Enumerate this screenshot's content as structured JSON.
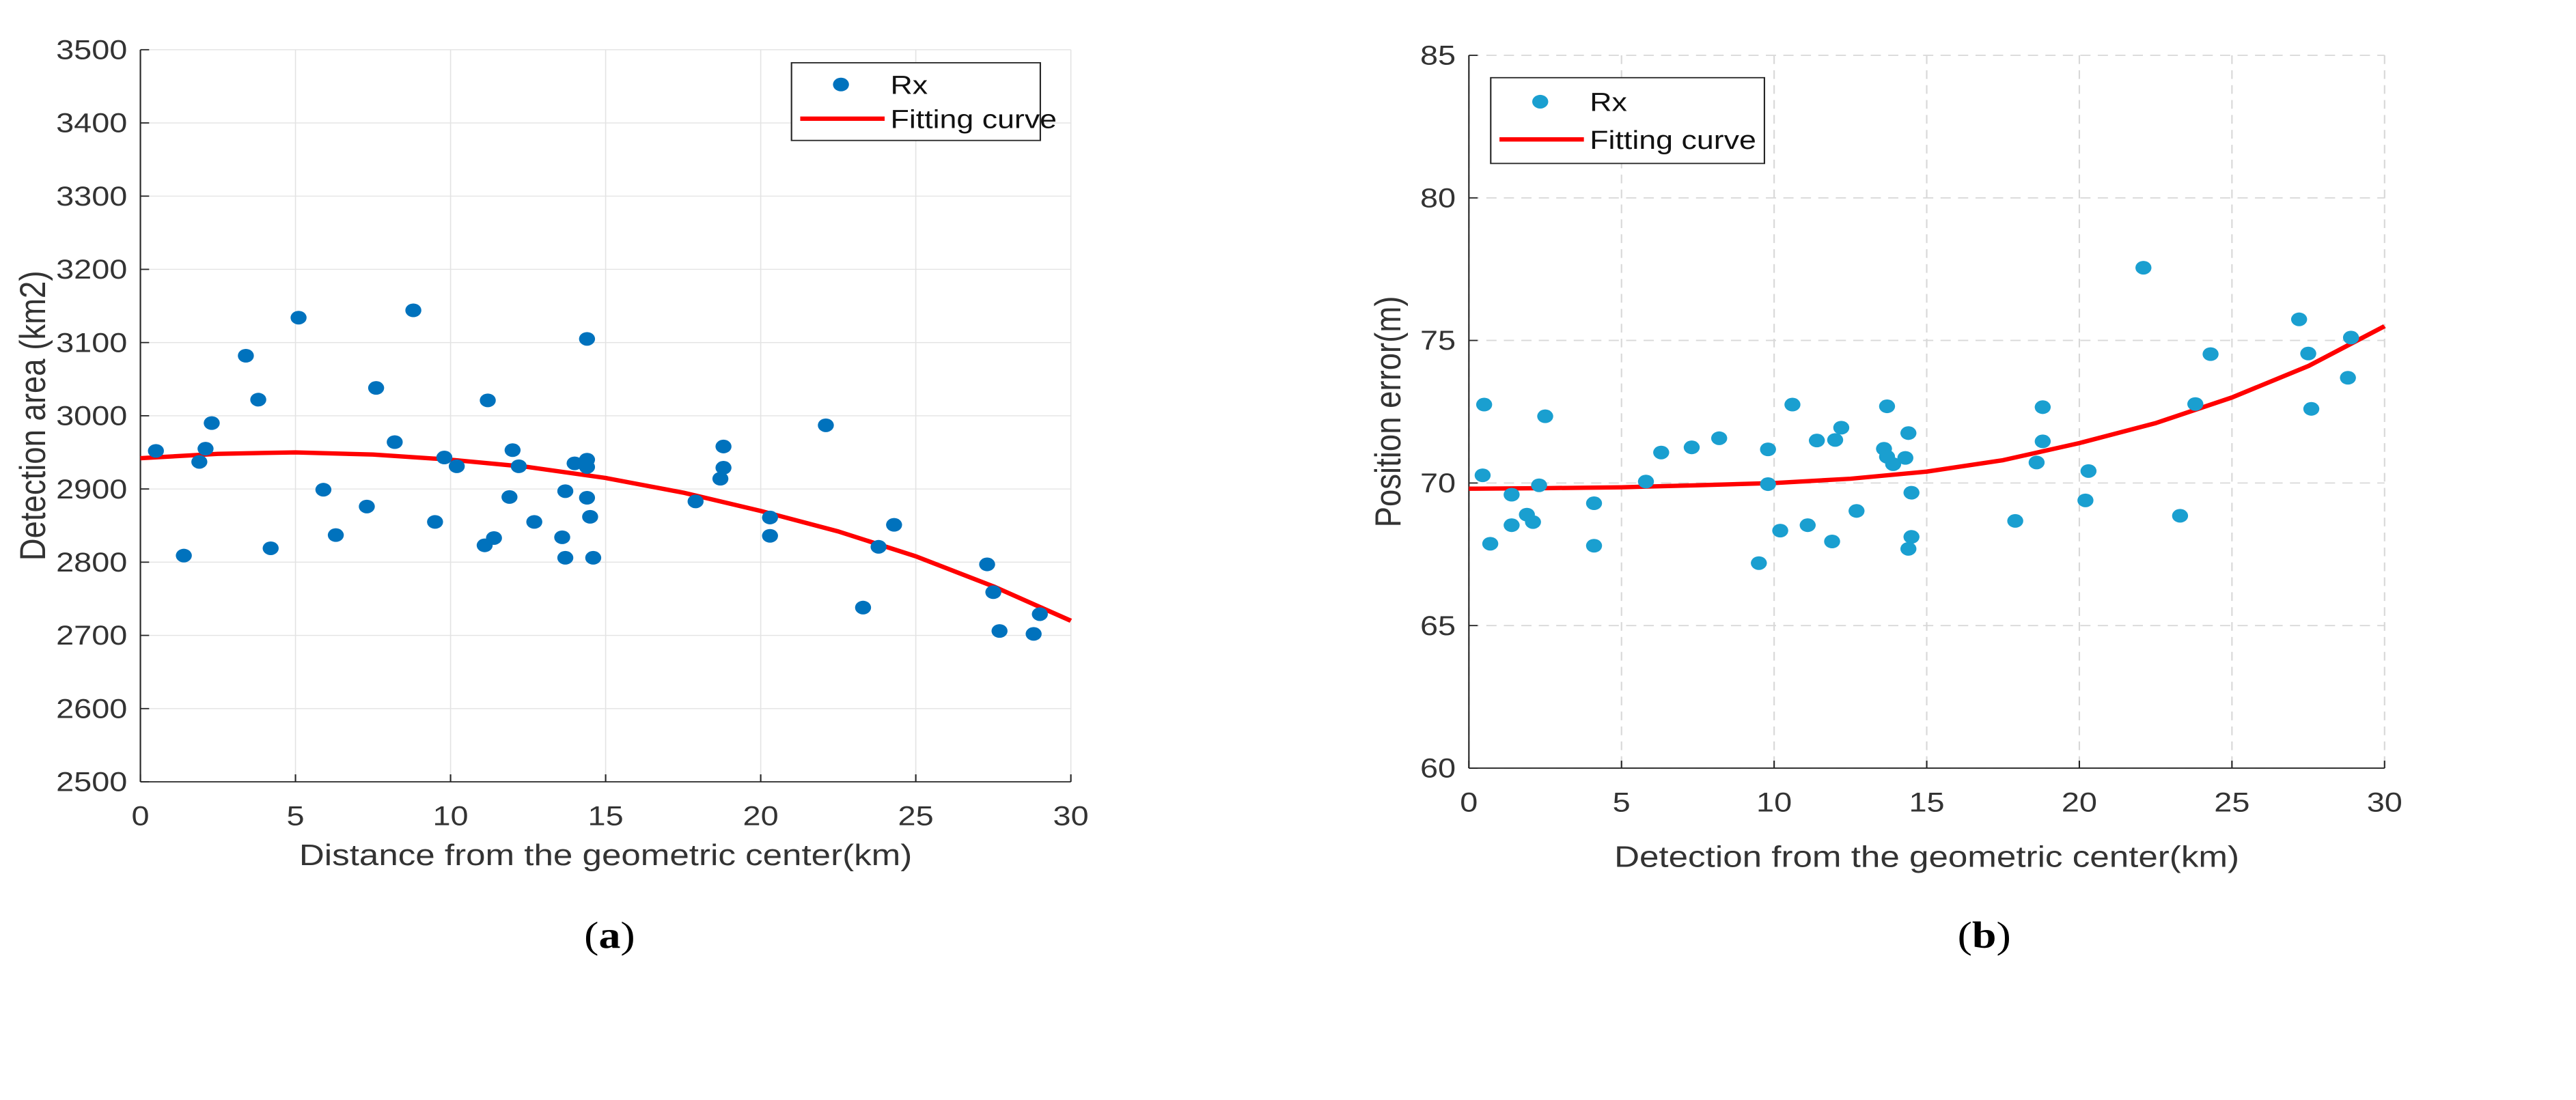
{
  "chart_data": [
    {
      "type": "scatter",
      "caption": "(a)",
      "caption_letter": "a",
      "title": "",
      "xlabel": "Distance from the geometric center(km)",
      "ylabel": "Detection area (km2)",
      "xlim": [
        0,
        30
      ],
      "ylim": [
        2500,
        3500
      ],
      "xticks": [
        0,
        5,
        10,
        15,
        20,
        25,
        30
      ],
      "yticks": [
        2500,
        2600,
        2700,
        2800,
        2900,
        3000,
        3100,
        3200,
        3300,
        3400,
        3500
      ],
      "grid": "solid",
      "legend_position": "top-right",
      "legend": [
        "Rx",
        "Fitting curve"
      ],
      "colors": {
        "points": "#0072BD",
        "curve": "#FF0000"
      },
      "series": [
        {
          "name": "Rx",
          "kind": "points",
          "x": [
            0.5,
            1.4,
            1.9,
            2.1,
            2.3,
            3.4,
            3.8,
            4.2,
            5.1,
            5.9,
            6.3,
            7.3,
            7.6,
            8.2,
            8.8,
            9.5,
            9.8,
            10.2,
            11.1,
            11.2,
            11.4,
            11.9,
            12.0,
            12.2,
            12.7,
            13.6,
            13.7,
            13.7,
            14.0,
            14.4,
            14.4,
            14.4,
            14.4,
            14.5,
            14.6,
            17.9,
            18.7,
            18.8,
            18.8,
            20.3,
            20.3,
            22.1,
            23.3,
            23.8,
            24.3,
            27.3,
            27.5,
            27.7,
            28.8,
            29.0
          ],
          "y": [
            2952,
            2809,
            2937,
            2955,
            2990,
            3082,
            3022,
            2819,
            3134,
            2899,
            2837,
            2876,
            3038,
            2964,
            3144,
            2855,
            2943,
            2931,
            2823,
            3021,
            2833,
            2889,
            2953,
            2931,
            2855,
            2834,
            2806,
            2897,
            2935,
            2940,
            3105,
            2930,
            2888,
            2862,
            2806,
            2883,
            2914,
            2929,
            2958,
            2861,
            2836,
            2987,
            2738,
            2821,
            2851,
            2797,
            2759,
            2706,
            2702,
            2729
          ]
        },
        {
          "name": "Fitting curve",
          "kind": "line",
          "x": [
            0,
            2.5,
            5,
            7.5,
            10,
            12.5,
            15,
            17.5,
            20,
            22.5,
            25,
            27.5,
            30
          ],
          "y": [
            2942,
            2948,
            2950,
            2947,
            2940,
            2930,
            2915,
            2895,
            2870,
            2842,
            2808,
            2767,
            2720
          ]
        }
      ]
    },
    {
      "type": "scatter",
      "caption": "(b)",
      "caption_letter": "b",
      "title": "",
      "xlabel": "Detection from the geometric center(km)",
      "ylabel": "Position error(m)",
      "xlim": [
        0,
        30
      ],
      "ylim": [
        60,
        85
      ],
      "xticks": [
        0,
        5,
        10,
        15,
        20,
        25,
        30
      ],
      "yticks": [
        60,
        65,
        70,
        75,
        80,
        85
      ],
      "grid": "dashed",
      "legend_position": "top-left",
      "legend": [
        "Rx",
        "Fitting curve"
      ],
      "colors": {
        "points": "#1A9FD0",
        "curve": "#FF0000"
      },
      "series": [
        {
          "name": "Rx",
          "kind": "points",
          "x": [
            0.5,
            0.45,
            0.7,
            1.4,
            1.4,
            1.9,
            2.1,
            2.3,
            2.5,
            4.1,
            4.1,
            5.8,
            6.3,
            7.3,
            8.2,
            9.5,
            9.8,
            9.8,
            10.2,
            10.6,
            11.1,
            11.4,
            11.9,
            12.0,
            12.2,
            12.7,
            13.6,
            13.7,
            13.7,
            13.9,
            14.3,
            14.4,
            14.4,
            14.5,
            14.5,
            17.9,
            18.6,
            18.8,
            18.8,
            20.2,
            20.3,
            22.1,
            23.3,
            23.8,
            24.3,
            27.2,
            27.5,
            27.6,
            28.8,
            28.9
          ],
          "y": [
            72.75,
            70.27,
            67.87,
            69.59,
            68.52,
            68.89,
            68.63,
            69.92,
            72.34,
            69.29,
            67.8,
            70.05,
            71.07,
            71.25,
            71.57,
            67.19,
            71.18,
            69.96,
            68.33,
            72.75,
            68.52,
            71.49,
            67.95,
            71.51,
            71.94,
            69.02,
            71.2,
            72.69,
            70.92,
            70.66,
            70.88,
            71.75,
            67.69,
            68.11,
            69.66,
            68.67,
            70.72,
            71.46,
            72.66,
            69.39,
            70.42,
            77.55,
            68.85,
            72.77,
            74.52,
            75.74,
            74.54,
            72.6,
            73.69,
            75.1
          ]
        },
        {
          "name": "Fitting curve",
          "kind": "line",
          "x": [
            0,
            2.5,
            5,
            7.5,
            10,
            12.5,
            15,
            17.5,
            20,
            22.5,
            25,
            27.5,
            30
          ],
          "y": [
            69.8,
            69.82,
            69.85,
            69.92,
            70.0,
            70.15,
            70.4,
            70.8,
            71.4,
            72.1,
            73.0,
            74.1,
            75.5
          ]
        }
      ]
    }
  ]
}
